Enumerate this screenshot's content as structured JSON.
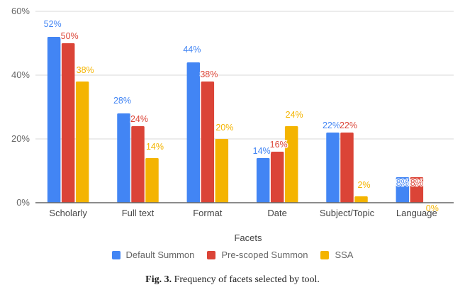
{
  "chart_data": {
    "type": "bar",
    "title": "",
    "xlabel": "Facets",
    "ylabel": "",
    "ylim": [
      0,
      60
    ],
    "yticks": [
      "0%",
      "20%",
      "40%",
      "60%"
    ],
    "ytick_values": [
      0,
      20,
      40,
      60
    ],
    "grid": true,
    "legend_position": "bottom",
    "categories": [
      "Scholarly",
      "Full text",
      "Format",
      "Date",
      "Subject/Topic",
      "Language"
    ],
    "series": [
      {
        "name": "Default Summon",
        "color": "#4285f4",
        "values": [
          52,
          28,
          44,
          14,
          22,
          8
        ],
        "labels": [
          "52%",
          "28%",
          "44%",
          "14%",
          "22%",
          "8%"
        ]
      },
      {
        "name": "Pre-scoped Summon",
        "color": "#db4437",
        "values": [
          50,
          24,
          38,
          16,
          22,
          8
        ],
        "labels": [
          "50%",
          "24%",
          "38%",
          "16%",
          "22%",
          "8%"
        ]
      },
      {
        "name": "SSA",
        "color": "#f4b400",
        "values": [
          38,
          14,
          20,
          24,
          2,
          0
        ],
        "labels": [
          "38%",
          "14%",
          "20%",
          "24%",
          "2%",
          "0%"
        ]
      }
    ]
  },
  "caption": {
    "label": "Fig. 3.",
    "text": " Frequency of facets selected by tool."
  }
}
